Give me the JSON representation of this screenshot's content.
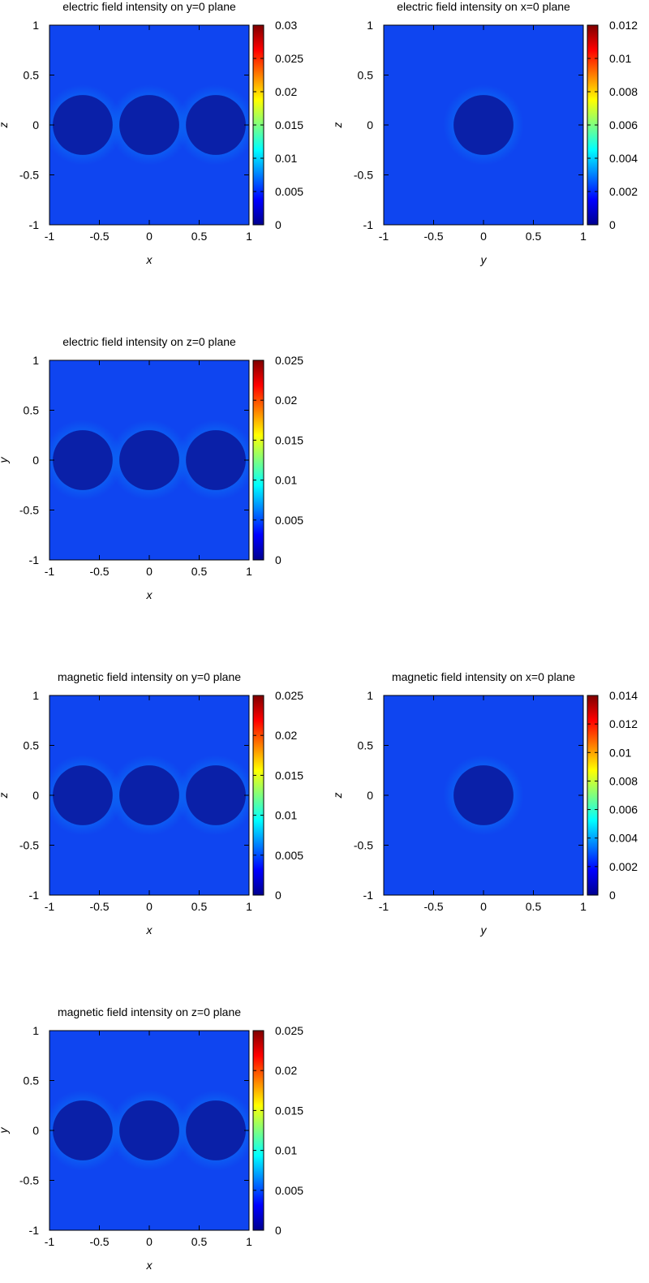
{
  "colorbar": {
    "stops": [
      "#00008f",
      "#0000ff",
      "#007fff",
      "#00ffff",
      "#7fff7f",
      "#ffff00",
      "#ff7f00",
      "#ff0000",
      "#7f0000"
    ]
  },
  "background_color": "#0f45f0",
  "sphere_color": "#0a20a8",
  "chart_data": [
    {
      "type": "heatmap",
      "title": "electric field intensity on y=0 plane",
      "xlabel": "x",
      "ylabel": "z",
      "xlim": [
        -1,
        1
      ],
      "ylim": [
        -1,
        1
      ],
      "xticks": [
        "-1",
        "-0.5",
        "0",
        "0.5",
        "1"
      ],
      "yticks": [
        "-1",
        "-0.5",
        "0",
        "0.5",
        "1"
      ],
      "colorbar": {
        "range": [
          0,
          0.03
        ],
        "ticks": [
          "0",
          "0.005",
          "0.01",
          "0.015",
          "0.02",
          "0.025",
          "0.03"
        ],
        "values": [
          0,
          0.005,
          0.01,
          0.015,
          0.02,
          0.025,
          0.03
        ]
      },
      "spheres": [
        {
          "cx": -0.667,
          "cy": 0,
          "r": 0.3
        },
        {
          "cx": 0,
          "cy": 0,
          "r": 0.3
        },
        {
          "cx": 0.667,
          "cy": 0,
          "r": 0.3
        }
      ]
    },
    {
      "type": "heatmap",
      "title": "electric field intensity on x=0 plane",
      "xlabel": "y",
      "ylabel": "z",
      "xlim": [
        -1,
        1
      ],
      "ylim": [
        -1,
        1
      ],
      "xticks": [
        "-1",
        "-0.5",
        "0",
        "0.5",
        "1"
      ],
      "yticks": [
        "-1",
        "-0.5",
        "0",
        "0.5",
        "1"
      ],
      "colorbar": {
        "range": [
          0,
          0.012
        ],
        "ticks": [
          "0",
          "0.002",
          "0.004",
          "0.006",
          "0.008",
          "0.01",
          "0.012"
        ],
        "values": [
          0,
          0.002,
          0.004,
          0.006,
          0.008,
          0.01,
          0.012
        ]
      },
      "spheres": [
        {
          "cx": 0,
          "cy": 0,
          "r": 0.3
        }
      ]
    },
    {
      "type": "heatmap",
      "title": "electric field intensity on z=0 plane",
      "xlabel": "x",
      "ylabel": "y",
      "xlim": [
        -1,
        1
      ],
      "ylim": [
        -1,
        1
      ],
      "xticks": [
        "-1",
        "-0.5",
        "0",
        "0.5",
        "1"
      ],
      "yticks": [
        "-1",
        "-0.5",
        "0",
        "0.5",
        "1"
      ],
      "colorbar": {
        "range": [
          0,
          0.025
        ],
        "ticks": [
          "0",
          "0.005",
          "0.01",
          "0.015",
          "0.02",
          "0.025"
        ],
        "values": [
          0,
          0.005,
          0.01,
          0.015,
          0.02,
          0.025
        ]
      },
      "spheres": [
        {
          "cx": -0.667,
          "cy": 0,
          "r": 0.3
        },
        {
          "cx": 0,
          "cy": 0,
          "r": 0.3
        },
        {
          "cx": 0.667,
          "cy": 0,
          "r": 0.3
        }
      ]
    },
    {
      "type": "heatmap",
      "title": "magnetic field intensity on y=0 plane",
      "xlabel": "x",
      "ylabel": "z",
      "xlim": [
        -1,
        1
      ],
      "ylim": [
        -1,
        1
      ],
      "xticks": [
        "-1",
        "-0.5",
        "0",
        "0.5",
        "1"
      ],
      "yticks": [
        "-1",
        "-0.5",
        "0",
        "0.5",
        "1"
      ],
      "colorbar": {
        "range": [
          0,
          0.025
        ],
        "ticks": [
          "0",
          "0.005",
          "0.01",
          "0.015",
          "0.02",
          "0.025"
        ],
        "values": [
          0,
          0.005,
          0.01,
          0.015,
          0.02,
          0.025
        ]
      },
      "spheres": [
        {
          "cx": -0.667,
          "cy": 0,
          "r": 0.3
        },
        {
          "cx": 0,
          "cy": 0,
          "r": 0.3
        },
        {
          "cx": 0.667,
          "cy": 0,
          "r": 0.3
        }
      ]
    },
    {
      "type": "heatmap",
      "title": "magnetic field intensity on x=0 plane",
      "xlabel": "y",
      "ylabel": "z",
      "xlim": [
        -1,
        1
      ],
      "ylim": [
        -1,
        1
      ],
      "xticks": [
        "-1",
        "-0.5",
        "0",
        "0.5",
        "1"
      ],
      "yticks": [
        "-1",
        "-0.5",
        "0",
        "0.5",
        "1"
      ],
      "colorbar": {
        "range": [
          0,
          0.014
        ],
        "ticks": [
          "0",
          "0.002",
          "0.004",
          "0.006",
          "0.008",
          "0.01",
          "0.012",
          "0.014"
        ],
        "values": [
          0,
          0.002,
          0.004,
          0.006,
          0.008,
          0.01,
          0.012,
          0.014
        ]
      },
      "spheres": [
        {
          "cx": 0,
          "cy": 0,
          "r": 0.3
        }
      ]
    },
    {
      "type": "heatmap",
      "title": "magnetic field intensity on z=0 plane",
      "xlabel": "x",
      "ylabel": "y",
      "xlim": [
        -1,
        1
      ],
      "ylim": [
        -1,
        1
      ],
      "xticks": [
        "-1",
        "-0.5",
        "0",
        "0.5",
        "1"
      ],
      "yticks": [
        "-1",
        "-0.5",
        "0",
        "0.5",
        "1"
      ],
      "colorbar": {
        "range": [
          0,
          0.025
        ],
        "ticks": [
          "0",
          "0.005",
          "0.01",
          "0.015",
          "0.02",
          "0.025"
        ],
        "values": [
          0,
          0.005,
          0.01,
          0.015,
          0.02,
          0.025
        ]
      },
      "spheres": [
        {
          "cx": -0.667,
          "cy": 0,
          "r": 0.3
        },
        {
          "cx": 0,
          "cy": 0,
          "r": 0.3
        },
        {
          "cx": 0.667,
          "cy": 0,
          "r": 0.3
        }
      ]
    }
  ]
}
